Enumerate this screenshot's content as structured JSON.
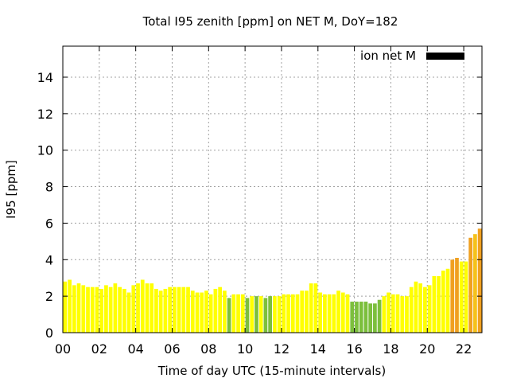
{
  "chart_data": {
    "type": "bar",
    "title": "Total I95 zenith [ppm] on NET M, DoY=182",
    "xlabel": "Time of day UTC (15-minute intervals)",
    "ylabel": "I95 [ppm]",
    "xlim": [
      0,
      23
    ],
    "ylim": [
      0,
      15.7
    ],
    "x_ticks": [
      "00",
      "02",
      "04",
      "06",
      "08",
      "10",
      "12",
      "14",
      "16",
      "18",
      "20",
      "22"
    ],
    "y_ticks": [
      "0",
      "2",
      "4",
      "6",
      "8",
      "10",
      "12",
      "14"
    ],
    "grid": true,
    "legend": {
      "position": "top-right",
      "label": "ion net M",
      "color": "#000000"
    },
    "bin_hours": 0.25,
    "colors": {
      "low": "#ffff00",
      "quiet": "#7cbf3c",
      "elevated": "#f5c21a",
      "high": "#f0a020"
    },
    "bars": [
      {
        "x": 0.0,
        "y": 2.8,
        "level": "low"
      },
      {
        "x": 0.25,
        "y": 2.9,
        "level": "low"
      },
      {
        "x": 0.5,
        "y": 2.6,
        "level": "low"
      },
      {
        "x": 0.75,
        "y": 2.7,
        "level": "low"
      },
      {
        "x": 1.0,
        "y": 2.6,
        "level": "low"
      },
      {
        "x": 1.25,
        "y": 2.5,
        "level": "low"
      },
      {
        "x": 1.5,
        "y": 2.5,
        "level": "low"
      },
      {
        "x": 1.75,
        "y": 2.5,
        "level": "low"
      },
      {
        "x": 2.0,
        "y": 2.4,
        "level": "low"
      },
      {
        "x": 2.25,
        "y": 2.6,
        "level": "low"
      },
      {
        "x": 2.5,
        "y": 2.5,
        "level": "low"
      },
      {
        "x": 2.75,
        "y": 2.7,
        "level": "low"
      },
      {
        "x": 3.0,
        "y": 2.5,
        "level": "low"
      },
      {
        "x": 3.25,
        "y": 2.4,
        "level": "low"
      },
      {
        "x": 3.5,
        "y": 2.2,
        "level": "low"
      },
      {
        "x": 3.75,
        "y": 2.6,
        "level": "low"
      },
      {
        "x": 4.0,
        "y": 2.7,
        "level": "low"
      },
      {
        "x": 4.25,
        "y": 2.9,
        "level": "low"
      },
      {
        "x": 4.5,
        "y": 2.7,
        "level": "low"
      },
      {
        "x": 4.75,
        "y": 2.7,
        "level": "low"
      },
      {
        "x": 5.0,
        "y": 2.4,
        "level": "low"
      },
      {
        "x": 5.25,
        "y": 2.3,
        "level": "low"
      },
      {
        "x": 5.5,
        "y": 2.4,
        "level": "low"
      },
      {
        "x": 5.75,
        "y": 2.5,
        "level": "low"
      },
      {
        "x": 6.0,
        "y": 2.5,
        "level": "low"
      },
      {
        "x": 6.25,
        "y": 2.5,
        "level": "low"
      },
      {
        "x": 6.5,
        "y": 2.5,
        "level": "low"
      },
      {
        "x": 6.75,
        "y": 2.5,
        "level": "low"
      },
      {
        "x": 7.0,
        "y": 2.3,
        "level": "low"
      },
      {
        "x": 7.25,
        "y": 2.2,
        "level": "low"
      },
      {
        "x": 7.5,
        "y": 2.2,
        "level": "low"
      },
      {
        "x": 7.75,
        "y": 2.3,
        "level": "low"
      },
      {
        "x": 8.0,
        "y": 2.1,
        "level": "low"
      },
      {
        "x": 8.25,
        "y": 2.4,
        "level": "low"
      },
      {
        "x": 8.5,
        "y": 2.5,
        "level": "low"
      },
      {
        "x": 8.75,
        "y": 2.3,
        "level": "low"
      },
      {
        "x": 9.0,
        "y": 1.9,
        "level": "quiet"
      },
      {
        "x": 9.25,
        "y": 2.1,
        "level": "low"
      },
      {
        "x": 9.5,
        "y": 2.1,
        "level": "low"
      },
      {
        "x": 9.75,
        "y": 2.1,
        "level": "low"
      },
      {
        "x": 10.0,
        "y": 1.9,
        "level": "quiet"
      },
      {
        "x": 10.25,
        "y": 2.0,
        "level": "low"
      },
      {
        "x": 10.5,
        "y": 2.0,
        "level": "quiet"
      },
      {
        "x": 10.75,
        "y": 2.0,
        "level": "low"
      },
      {
        "x": 11.0,
        "y": 1.9,
        "level": "quiet"
      },
      {
        "x": 11.25,
        "y": 2.0,
        "level": "quiet"
      },
      {
        "x": 11.5,
        "y": 2.0,
        "level": "low"
      },
      {
        "x": 11.75,
        "y": 2.0,
        "level": "low"
      },
      {
        "x": 12.0,
        "y": 2.1,
        "level": "low"
      },
      {
        "x": 12.25,
        "y": 2.1,
        "level": "low"
      },
      {
        "x": 12.5,
        "y": 2.1,
        "level": "low"
      },
      {
        "x": 12.75,
        "y": 2.1,
        "level": "low"
      },
      {
        "x": 13.0,
        "y": 2.3,
        "level": "low"
      },
      {
        "x": 13.25,
        "y": 2.3,
        "level": "low"
      },
      {
        "x": 13.5,
        "y": 2.7,
        "level": "low"
      },
      {
        "x": 13.75,
        "y": 2.7,
        "level": "low"
      },
      {
        "x": 14.0,
        "y": 2.2,
        "level": "low"
      },
      {
        "x": 14.25,
        "y": 2.1,
        "level": "low"
      },
      {
        "x": 14.5,
        "y": 2.1,
        "level": "low"
      },
      {
        "x": 14.75,
        "y": 2.1,
        "level": "low"
      },
      {
        "x": 15.0,
        "y": 2.3,
        "level": "low"
      },
      {
        "x": 15.25,
        "y": 2.2,
        "level": "low"
      },
      {
        "x": 15.5,
        "y": 2.1,
        "level": "low"
      },
      {
        "x": 15.75,
        "y": 1.7,
        "level": "quiet"
      },
      {
        "x": 16.0,
        "y": 1.7,
        "level": "quiet"
      },
      {
        "x": 16.25,
        "y": 1.7,
        "level": "quiet"
      },
      {
        "x": 16.5,
        "y": 1.7,
        "level": "quiet"
      },
      {
        "x": 16.75,
        "y": 1.6,
        "level": "quiet"
      },
      {
        "x": 17.0,
        "y": 1.6,
        "level": "quiet"
      },
      {
        "x": 17.25,
        "y": 1.8,
        "level": "quiet"
      },
      {
        "x": 17.5,
        "y": 2.0,
        "level": "low"
      },
      {
        "x": 17.75,
        "y": 2.2,
        "level": "low"
      },
      {
        "x": 18.0,
        "y": 2.1,
        "level": "low"
      },
      {
        "x": 18.25,
        "y": 2.1,
        "level": "low"
      },
      {
        "x": 18.5,
        "y": 2.0,
        "level": "low"
      },
      {
        "x": 18.75,
        "y": 2.0,
        "level": "low"
      },
      {
        "x": 19.0,
        "y": 2.5,
        "level": "low"
      },
      {
        "x": 19.25,
        "y": 2.8,
        "level": "low"
      },
      {
        "x": 19.5,
        "y": 2.7,
        "level": "low"
      },
      {
        "x": 19.75,
        "y": 2.5,
        "level": "low"
      },
      {
        "x": 20.0,
        "y": 2.6,
        "level": "low"
      },
      {
        "x": 20.25,
        "y": 3.1,
        "level": "low"
      },
      {
        "x": 20.5,
        "y": 3.1,
        "level": "low"
      },
      {
        "x": 20.75,
        "y": 3.4,
        "level": "low"
      },
      {
        "x": 21.0,
        "y": 3.5,
        "level": "low"
      },
      {
        "x": 21.25,
        "y": 4.0,
        "level": "high"
      },
      {
        "x": 21.5,
        "y": 4.1,
        "level": "high"
      },
      {
        "x": 21.75,
        "y": 3.9,
        "level": "low"
      },
      {
        "x": 22.0,
        "y": 3.9,
        "level": "low"
      },
      {
        "x": 22.25,
        "y": 5.2,
        "level": "high"
      },
      {
        "x": 22.5,
        "y": 5.4,
        "level": "elevated"
      },
      {
        "x": 22.75,
        "y": 5.7,
        "level": "high"
      }
    ]
  }
}
